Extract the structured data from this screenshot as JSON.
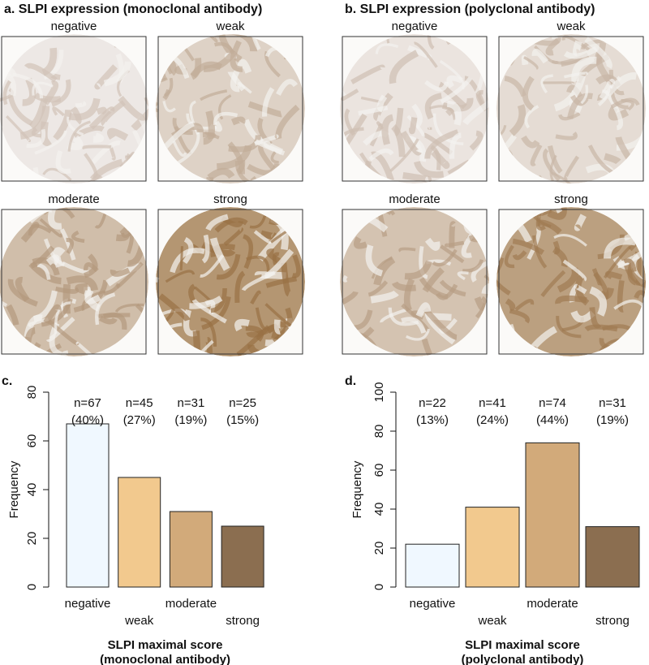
{
  "panels": [
    {
      "title": "a. SLPI expression (monoclonal antibody)",
      "images": [
        "negative",
        "weak",
        "moderate",
        "strong"
      ]
    },
    {
      "title": "b. SLPI expression (polyclonal antibody)",
      "images": [
        "negative",
        "weak",
        "moderate",
        "strong"
      ]
    }
  ],
  "chart_data": [
    {
      "type": "bar",
      "panel_label": "c.",
      "ylabel": "Frequency",
      "xlabel": [
        "SLPI maximal score",
        "(monoclonal antibody)"
      ],
      "categories": [
        "negative",
        "weak",
        "moderate",
        "strong"
      ],
      "values": [
        67,
        45,
        31,
        25
      ],
      "value_labels": [
        "n=67",
        "n=45",
        "n=31",
        "n=25"
      ],
      "percent_labels": [
        "(40%)",
        "(27%)",
        "(19%)",
        "(15%)"
      ],
      "colors": [
        "#f0f8ff",
        "#f2c98e",
        "#d2aa7a",
        "#8b6e50"
      ],
      "ylim": [
        0,
        80
      ],
      "yticks": [
        0,
        20,
        40,
        60,
        80
      ]
    },
    {
      "type": "bar",
      "panel_label": "d.",
      "ylabel": "Frequency",
      "xlabel": [
        "SLPI maximal score",
        "(polyclonal antibody)"
      ],
      "categories": [
        "negative",
        "weak",
        "moderate",
        "strong"
      ],
      "values": [
        22,
        41,
        74,
        31
      ],
      "value_labels": [
        "n=22",
        "n=41",
        "n=74",
        "n=31"
      ],
      "percent_labels": [
        "(13%)",
        "(24%)",
        "(44%)",
        "(19%)"
      ],
      "colors": [
        "#f0f8ff",
        "#f2c98e",
        "#d2aa7a",
        "#8b6e50"
      ],
      "ylim": [
        0,
        100
      ],
      "yticks": [
        0,
        20,
        40,
        60,
        80,
        100
      ]
    }
  ]
}
